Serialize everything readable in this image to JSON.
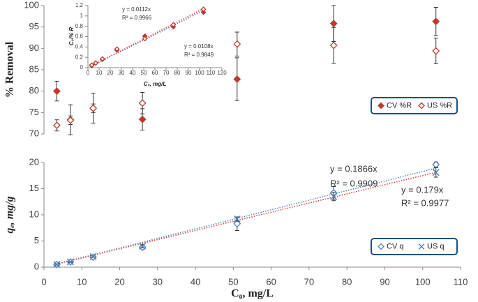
{
  "chart_data": [
    {
      "type": "scatter",
      "ylabel": "% Removal",
      "xlim": [
        0,
        110
      ],
      "ylim": [
        70,
        100
      ],
      "yticks": [
        70,
        75,
        80,
        85,
        90,
        95,
        100
      ],
      "legend": "bottom-right",
      "series": [
        {
          "name": "CV %R",
          "color": "#c0392b",
          "marker": "diamond-filled",
          "x": [
            3.4,
            7,
            13,
            26,
            51,
            76.5,
            103.5
          ],
          "values": [
            80,
            73.3,
            76,
            73.4,
            82.8,
            95.8,
            96.3
          ],
          "errors": [
            2.3,
            3.5,
            3.5,
            2.5,
            5,
            4.2,
            3.3
          ]
        },
        {
          "name": "US %R",
          "color": "#c0392b",
          "marker": "diamond-open",
          "x": [
            3.4,
            7,
            13,
            26,
            51,
            76.5,
            103.5
          ],
          "values": [
            72,
            73.2,
            76,
            77.2,
            91,
            90.7,
            89.4
          ],
          "errors": [
            1.3,
            1,
            1,
            2.5,
            2.8,
            4.2,
            3
          ]
        }
      ]
    },
    {
      "type": "scatter",
      "xlabel": "C₀, mg/L",
      "ylabel": "C₀/% R",
      "xlim": [
        0,
        120
      ],
      "xticks": [
        0,
        10,
        20,
        30,
        40,
        50,
        60,
        70,
        80,
        90,
        100,
        110,
        120
      ],
      "ylim": [
        0,
        1.2
      ],
      "yticks": [
        0,
        0.2,
        0.4,
        0.6,
        0.8,
        1,
        1.2
      ],
      "annotations": [
        "y = 0.0112x",
        "R² = 0.9966",
        "y = 0.0108x",
        "R² = 0.9849"
      ],
      "series": [
        {
          "name": "CV",
          "color": "#c0392b",
          "marker": "diamond-filled",
          "trendline_color": "#4f81bd",
          "x": [
            3.4,
            7,
            13,
            26,
            51,
            76.5,
            103.5
          ],
          "values": [
            0.04,
            0.09,
            0.16,
            0.34,
            0.61,
            0.79,
            1.07
          ]
        },
        {
          "name": "US",
          "color": "#c0392b",
          "marker": "diamond-open",
          "trendline_color": "#e03c31",
          "x": [
            3.4,
            7,
            13,
            26,
            51,
            76.5,
            103.5
          ],
          "values": [
            0.05,
            0.09,
            0.17,
            0.36,
            0.56,
            0.83,
            1.13
          ]
        }
      ]
    },
    {
      "type": "scatter",
      "xlabel": "C₀, mg/L",
      "ylabel": "qₑ, mg/g",
      "xlim": [
        0,
        110
      ],
      "xticks": [
        0,
        10,
        20,
        30,
        40,
        50,
        60,
        70,
        80,
        90,
        100,
        110
      ],
      "ylim": [
        0,
        20
      ],
      "yticks": [
        0,
        5,
        10,
        15,
        20
      ],
      "legend": "bottom-right",
      "annotations": [
        "y = 0.1866x",
        "R² = 0.9909",
        "y = 0.179x",
        "R² = 0.9977"
      ],
      "series": [
        {
          "name": "CV q",
          "color": "#4f81bd",
          "marker": "diamond-open",
          "trendline_color": "#4f81bd",
          "x": [
            3.4,
            7,
            13,
            26,
            51,
            76.5,
            103.5
          ],
          "values": [
            0.5,
            1.0,
            1.9,
            3.8,
            8.3,
            14.2,
            19.6
          ],
          "errors": [
            0.1,
            0.1,
            0.15,
            0.3,
            1.3,
            1.2,
            0.5
          ]
        },
        {
          "name": "US q",
          "color": "#4f81bd",
          "marker": "x",
          "trendline_color": "#e03c31",
          "x": [
            3.4,
            7,
            13,
            26,
            51,
            76.5,
            103.5
          ],
          "values": [
            0.5,
            1.0,
            2.0,
            4.0,
            9.2,
            13.5,
            18.1
          ],
          "errors": [
            0.1,
            0.1,
            0.15,
            0.3,
            0.4,
            0.8,
            0.9
          ]
        }
      ]
    }
  ]
}
